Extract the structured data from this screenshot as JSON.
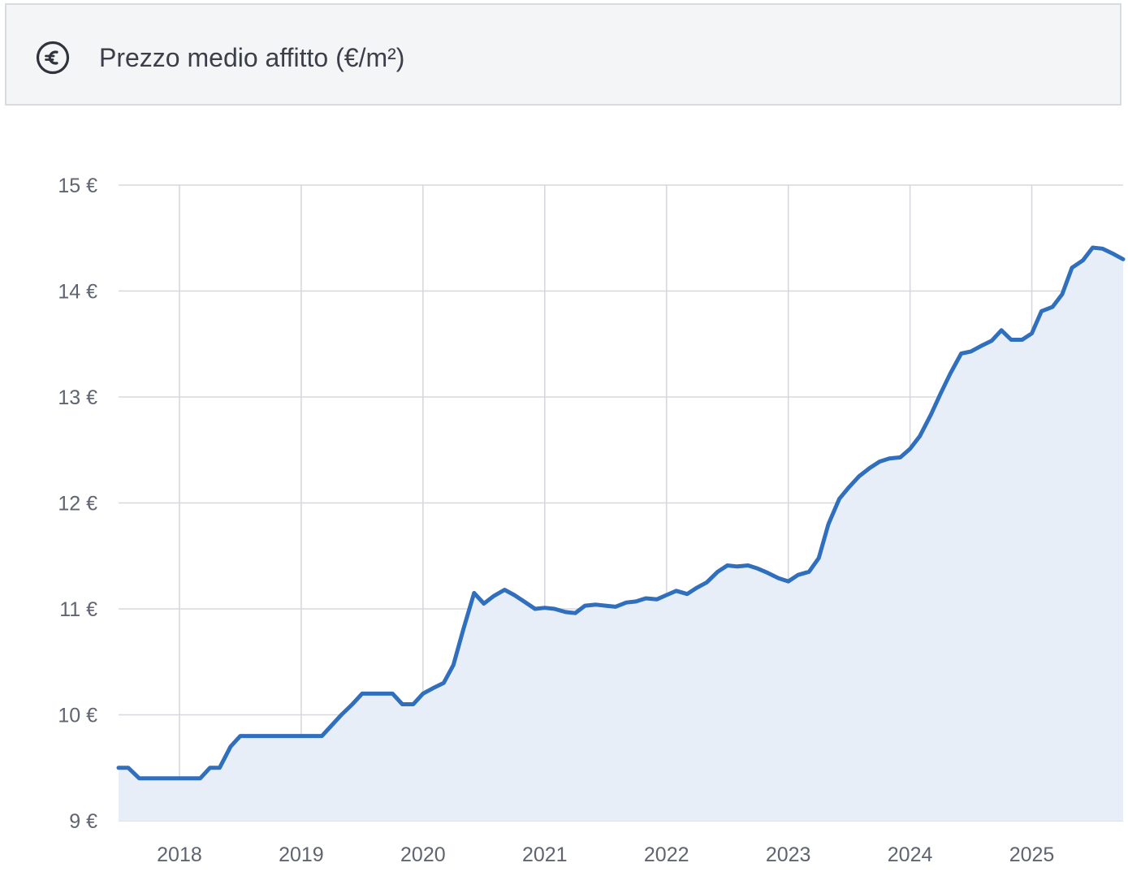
{
  "header": {
    "icon": "euro-circle-icon",
    "title": "Prezzo medio affitto (€/m²)"
  },
  "chart_data": {
    "type": "area",
    "title": "Prezzo medio affitto (€/m²)",
    "xlabel": "",
    "ylabel": "",
    "xlim": [
      2017.5,
      2025.75
    ],
    "ylim": [
      9,
      15
    ],
    "x_ticks": [
      2018,
      2019,
      2020,
      2021,
      2022,
      2023,
      2024,
      2025
    ],
    "x_tick_labels": [
      "2018",
      "2019",
      "2020",
      "2021",
      "2022",
      "2023",
      "2024",
      "2025"
    ],
    "y_ticks": [
      9,
      10,
      11,
      12,
      13,
      14,
      15
    ],
    "y_tick_labels": [
      "9 €",
      "10 €",
      "11 €",
      "12 €",
      "13 €",
      "14 €",
      "15 €"
    ],
    "grid": true,
    "colors": {
      "line": "#2f6fbd",
      "fill": "#e8eef8",
      "grid": "#d6d8dd"
    },
    "series": [
      {
        "x": [
          2017.5,
          2017.58,
          2017.67,
          2017.75,
          2017.83,
          2017.92,
          2018.0,
          2018.08,
          2018.17,
          2018.25,
          2018.33,
          2018.42,
          2018.5,
          2018.58,
          2018.67,
          2018.75,
          2018.83,
          2018.92,
          2019.0,
          2019.08,
          2019.17,
          2019.25,
          2019.33,
          2019.42,
          2019.5,
          2019.58,
          2019.67,
          2019.75,
          2019.83,
          2019.92,
          2020.0,
          2020.08,
          2020.17,
          2020.25,
          2020.33,
          2020.42,
          2020.5,
          2020.58,
          2020.67,
          2020.75,
          2020.83,
          2020.92,
          2021.0,
          2021.08,
          2021.17,
          2021.25,
          2021.33,
          2021.42,
          2021.5,
          2021.58,
          2021.67,
          2021.75,
          2021.83,
          2021.92,
          2022.0,
          2022.08,
          2022.17,
          2022.25,
          2022.33,
          2022.42,
          2022.5,
          2022.58,
          2022.67,
          2022.75,
          2022.83,
          2022.92,
          2023.0,
          2023.08,
          2023.17,
          2023.25,
          2023.33,
          2023.42,
          2023.5,
          2023.58,
          2023.67,
          2023.75,
          2023.83,
          2023.92,
          2024.0,
          2024.08,
          2024.17,
          2024.25,
          2024.33,
          2024.42,
          2024.5,
          2024.58,
          2024.67,
          2024.75,
          2024.83,
          2024.92,
          2025.0,
          2025.08,
          2025.17,
          2025.25,
          2025.33,
          2025.42,
          2025.5,
          2025.58,
          2025.67,
          2025.75
        ],
        "values": [
          9.5,
          9.5,
          9.4,
          9.4,
          9.4,
          9.4,
          9.4,
          9.4,
          9.4,
          9.5,
          9.5,
          9.7,
          9.8,
          9.8,
          9.8,
          9.8,
          9.8,
          9.8,
          9.8,
          9.8,
          9.8,
          9.9,
          10.0,
          10.1,
          10.2,
          10.2,
          10.2,
          10.2,
          10.1,
          10.1,
          10.2,
          10.25,
          10.3,
          10.47,
          10.8,
          11.15,
          11.05,
          11.12,
          11.18,
          11.13,
          11.07,
          11.0,
          11.01,
          11.0,
          10.97,
          10.96,
          11.03,
          11.04,
          11.03,
          11.02,
          11.06,
          11.07,
          11.1,
          11.09,
          11.13,
          11.17,
          11.14,
          11.2,
          11.25,
          11.35,
          11.41,
          11.4,
          11.41,
          11.38,
          11.34,
          11.29,
          11.26,
          11.32,
          11.35,
          11.48,
          11.8,
          12.04,
          12.15,
          12.25,
          12.33,
          12.39,
          12.42,
          12.43,
          12.51,
          12.63,
          12.83,
          13.03,
          13.22,
          13.41,
          13.43,
          13.48,
          13.53,
          13.63,
          13.54,
          13.54,
          13.6,
          13.81,
          13.85,
          13.97,
          14.22,
          14.29,
          14.41,
          14.4,
          14.35,
          14.3
        ]
      }
    ]
  }
}
